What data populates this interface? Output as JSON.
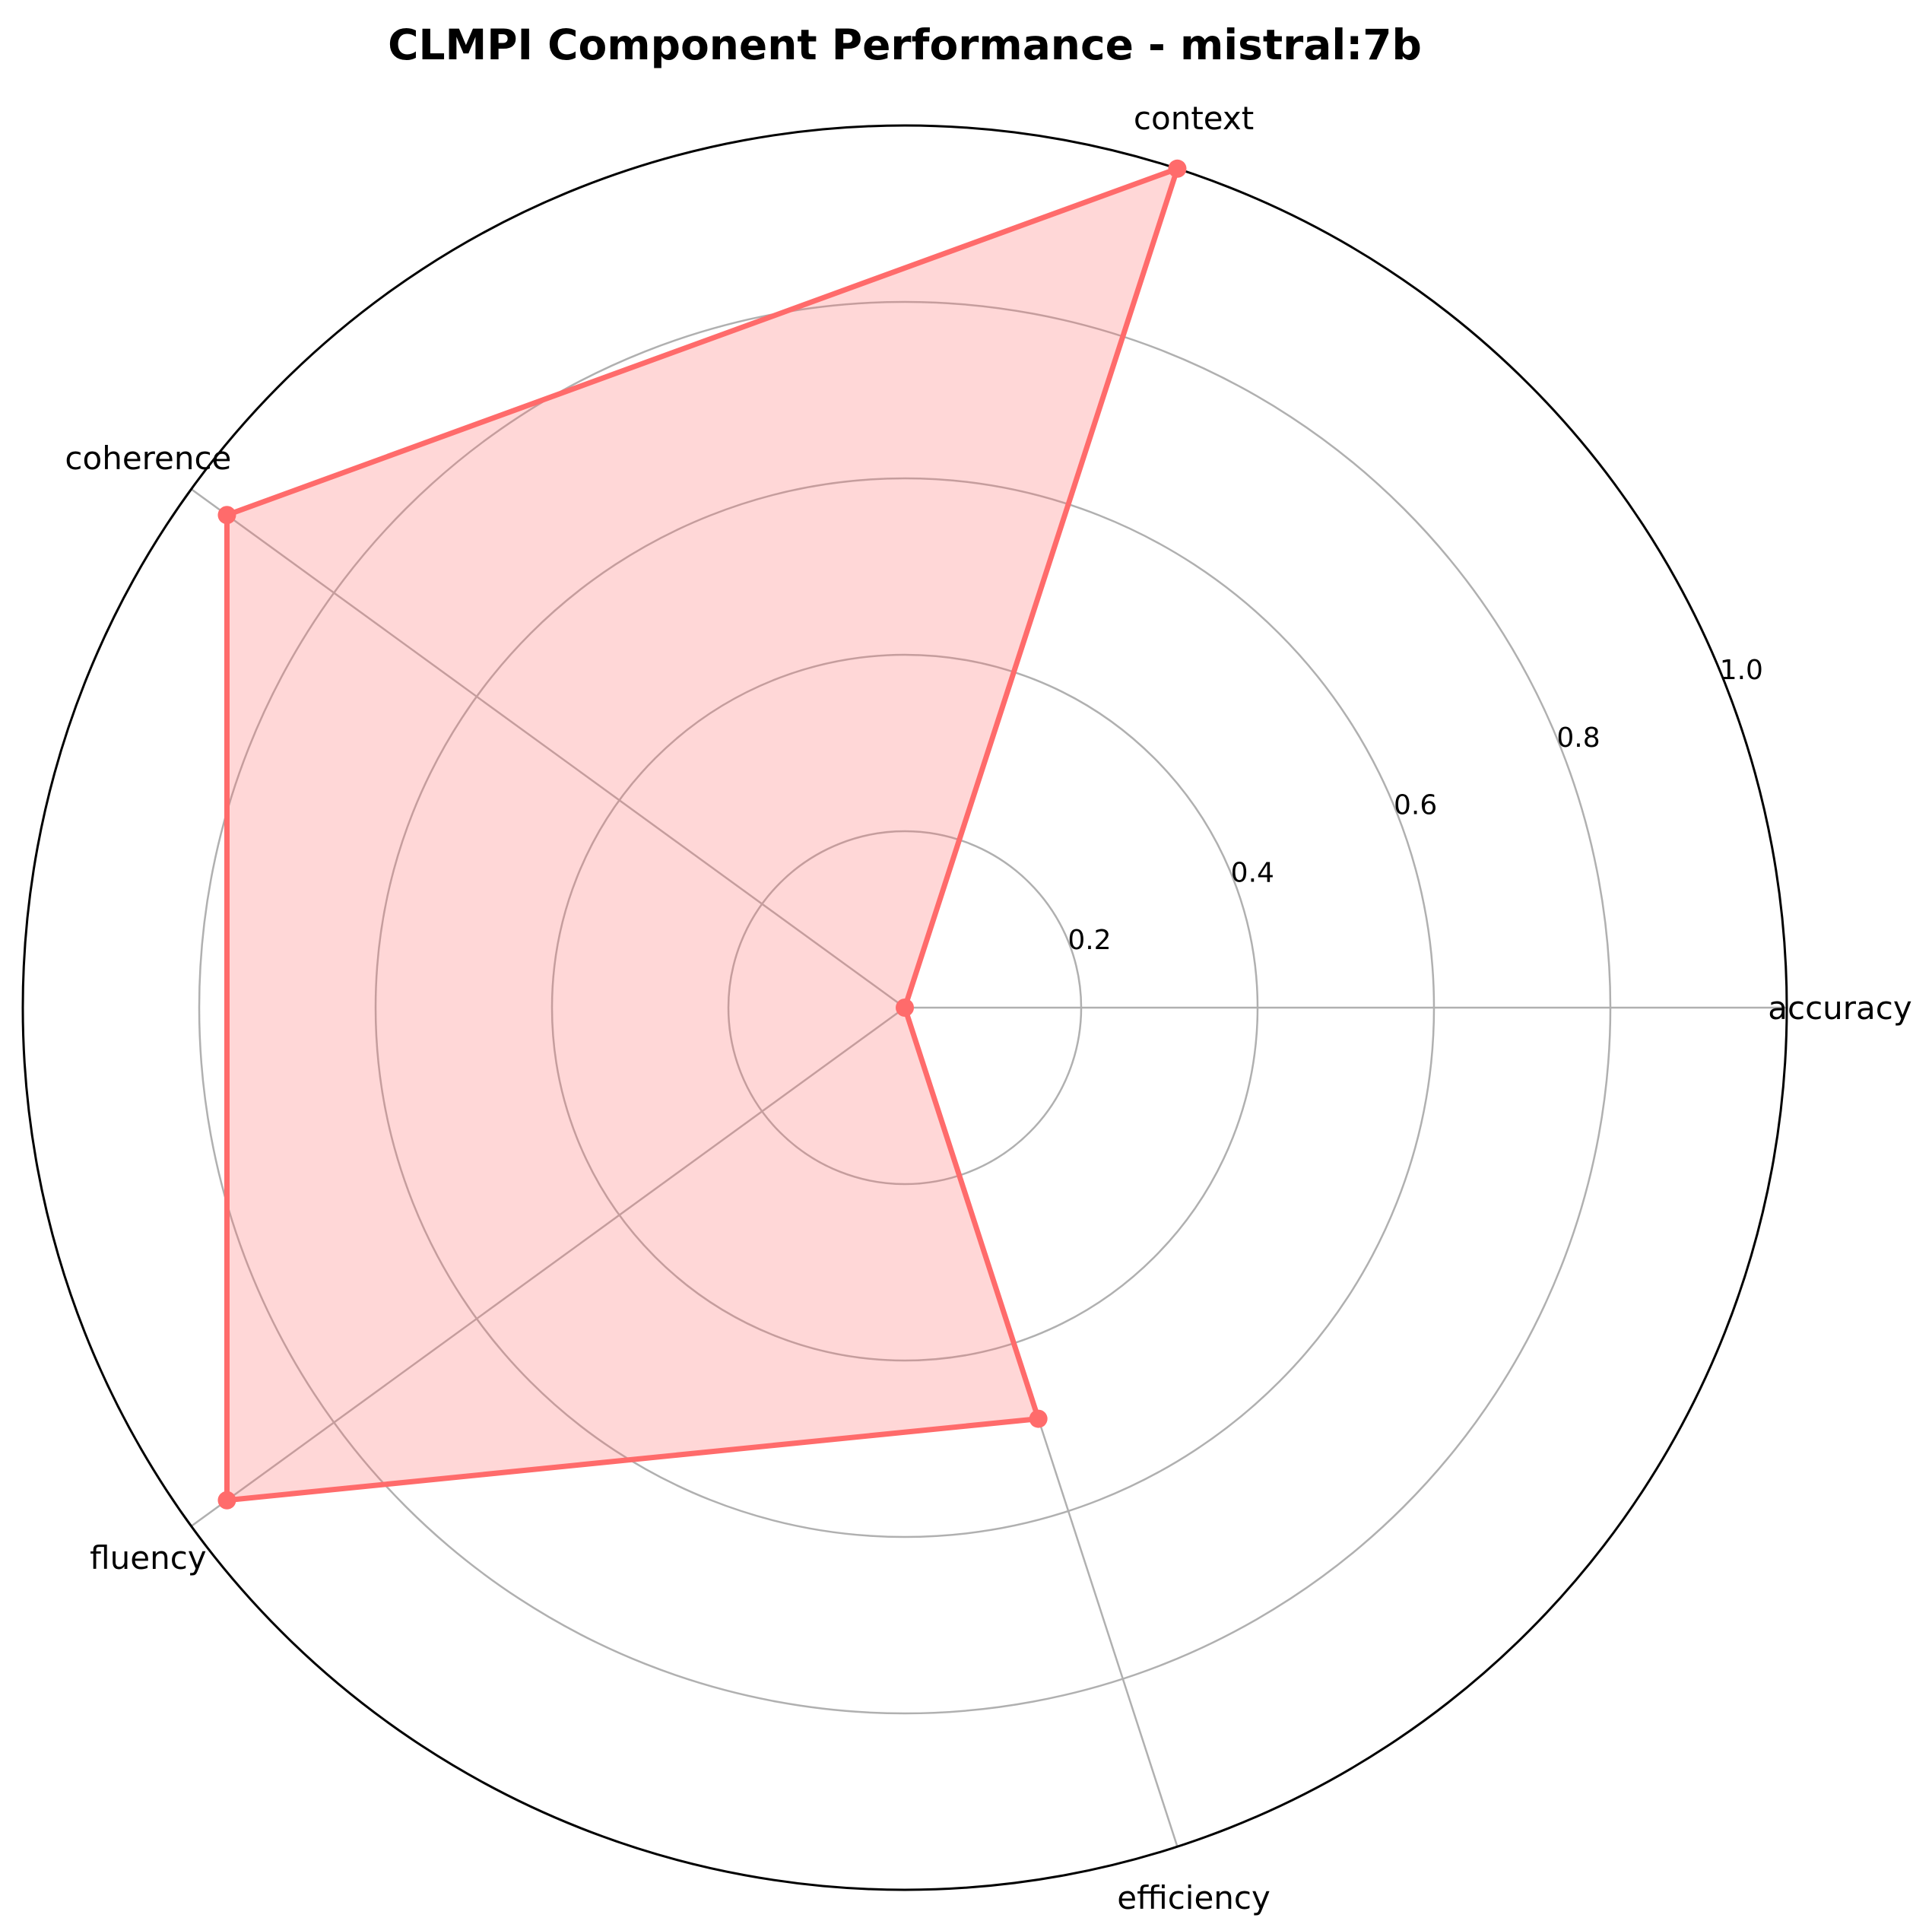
{
  "chart_data": {
    "type": "radar",
    "title": "CLMPI Component Performance - mistral:7b",
    "categories": [
      "accuracy",
      "context",
      "coherence",
      "fluency",
      "efficiency"
    ],
    "series": [
      {
        "values": [
          0.0,
          1.0,
          0.95,
          0.95,
          0.49
        ],
        "color": "#ff6b6b"
      }
    ],
    "rlim": [
      0,
      1.0
    ],
    "r_ticks": [
      "0.2",
      "0.4",
      "0.6",
      "0.8",
      "1.0"
    ],
    "grid": true
  }
}
